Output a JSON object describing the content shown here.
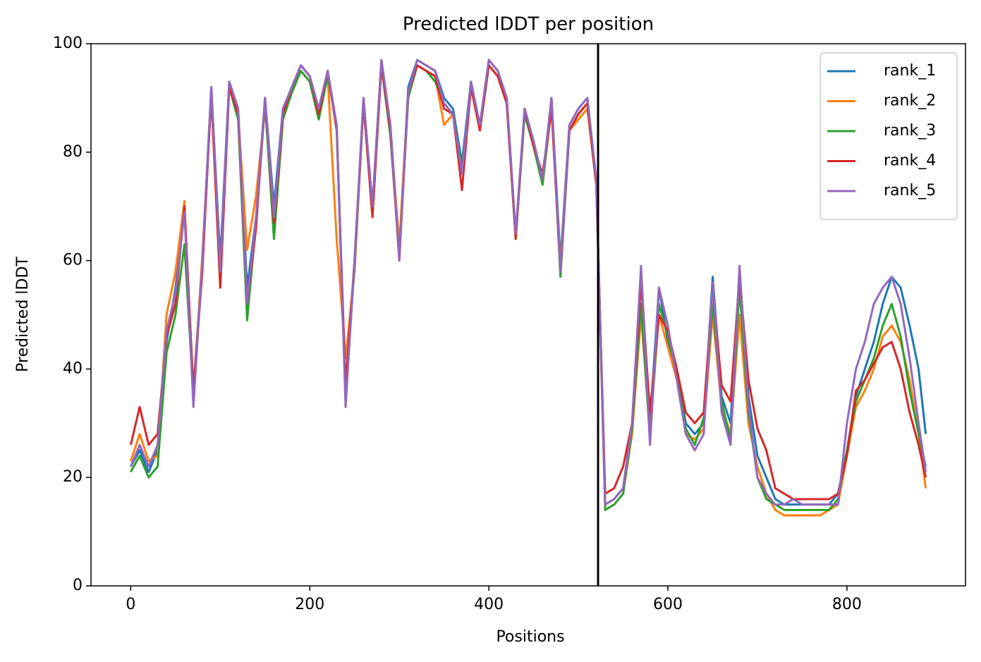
{
  "chart_data": {
    "type": "line",
    "title": "Predicted lDDT per position",
    "x_label": "Positions",
    "y_label": "Predicted lDDT",
    "x": [
      0,
      10,
      20,
      30,
      40,
      50,
      60,
      70,
      80,
      90,
      100,
      110,
      120,
      130,
      140,
      150,
      160,
      170,
      180,
      190,
      200,
      210,
      220,
      230,
      240,
      250,
      260,
      270,
      280,
      290,
      300,
      310,
      320,
      330,
      340,
      350,
      360,
      370,
      380,
      390,
      400,
      410,
      420,
      430,
      440,
      450,
      460,
      470,
      480,
      490,
      500,
      510,
      520,
      530,
      540,
      550,
      560,
      570,
      580,
      590,
      600,
      610,
      620,
      630,
      640,
      650,
      660,
      670,
      680,
      690,
      700,
      710,
      720,
      730,
      740,
      750,
      760,
      770,
      780,
      790,
      800,
      810,
      820,
      830,
      840,
      850,
      860,
      870,
      880,
      888
    ],
    "series": [
      {
        "name": "rank_1",
        "color": "#1f77b4",
        "values": [
          22,
          25,
          21,
          25,
          45,
          55,
          70,
          36,
          60,
          92,
          60,
          93,
          88,
          55,
          68,
          90,
          70,
          88,
          92,
          96,
          94,
          88,
          95,
          85,
          36,
          60,
          90,
          70,
          97,
          85,
          62,
          92,
          97,
          96,
          95,
          90,
          88,
          78,
          93,
          85,
          97,
          95,
          90,
          65,
          88,
          82,
          75,
          90,
          60,
          85,
          88,
          90,
          75,
          15,
          16,
          18,
          30,
          58,
          30,
          55,
          45,
          40,
          30,
          28,
          30,
          57,
          35,
          30,
          58,
          35,
          24,
          20,
          16,
          15,
          15,
          15,
          15,
          15,
          15,
          17,
          25,
          35,
          40,
          45,
          52,
          57,
          55,
          48,
          40,
          28
        ]
      },
      {
        "name": "rank_2",
        "color": "#ff7f0e",
        "values": [
          23,
          28,
          23,
          24,
          50,
          58,
          71,
          35,
          61,
          90,
          55,
          92,
          87,
          62,
          72,
          88,
          68,
          87,
          91,
          95,
          93,
          87,
          94,
          64,
          42,
          58,
          89,
          68,
          96,
          84,
          63,
          91,
          96,
          95,
          94,
          85,
          87,
          76,
          92,
          84,
          96,
          94,
          89,
          64,
          87,
          81,
          74,
          88,
          59,
          84,
          86,
          88,
          74,
          14,
          15,
          17,
          28,
          50,
          28,
          50,
          44,
          38,
          28,
          27,
          29,
          50,
          33,
          28,
          50,
          30,
          22,
          17,
          14,
          13,
          13,
          13,
          13,
          13,
          14,
          15,
          24,
          33,
          36,
          40,
          46,
          48,
          45,
          38,
          28,
          18
        ]
      },
      {
        "name": "rank_3",
        "color": "#2ca02c",
        "values": [
          21,
          24,
          20,
          22,
          43,
          50,
          63,
          35,
          59,
          91,
          58,
          92,
          86,
          49,
          67,
          89,
          64,
          86,
          91,
          95,
          93,
          86,
          94,
          85,
          35,
          59,
          89,
          69,
          96,
          83,
          61,
          90,
          96,
          95,
          93,
          89,
          87,
          77,
          92,
          85,
          96,
          94,
          89,
          64,
          87,
          81,
          74,
          89,
          57,
          84,
          87,
          89,
          74,
          14,
          15,
          17,
          29,
          52,
          27,
          52,
          46,
          39,
          29,
          26,
          31,
          52,
          34,
          27,
          55,
          32,
          20,
          16,
          15,
          14,
          14,
          14,
          14,
          14,
          14,
          16,
          25,
          34,
          38,
          42,
          48,
          52,
          46,
          36,
          28,
          22
        ]
      },
      {
        "name": "rank_4",
        "color": "#d62728",
        "values": [
          26,
          33,
          26,
          28,
          46,
          52,
          70,
          36,
          58,
          91,
          55,
          92,
          87,
          52,
          66,
          90,
          67,
          87,
          92,
          96,
          94,
          87,
          95,
          84,
          37,
          60,
          89,
          68,
          96,
          84,
          60,
          91,
          96,
          95,
          94,
          88,
          87,
          73,
          92,
          84,
          96,
          94,
          89,
          64,
          88,
          81,
          76,
          88,
          58,
          84,
          87,
          89,
          74,
          17,
          18,
          22,
          30,
          56,
          32,
          50,
          47,
          40,
          32,
          30,
          32,
          55,
          37,
          34,
          57,
          38,
          29,
          25,
          18,
          17,
          16,
          16,
          16,
          16,
          16,
          17,
          24,
          36,
          38,
          41,
          44,
          45,
          40,
          32,
          26,
          20
        ]
      },
      {
        "name": "rank_5",
        "color": "#9467bd",
        "values": [
          22,
          26,
          22,
          26,
          47,
          54,
          69,
          33,
          60,
          92,
          58,
          93,
          88,
          52,
          68,
          90,
          68,
          88,
          92,
          96,
          94,
          88,
          95,
          85,
          33,
          60,
          90,
          70,
          97,
          85,
          60,
          91,
          97,
          96,
          95,
          89,
          87,
          76,
          93,
          85,
          97,
          95,
          90,
          65,
          88,
          82,
          75,
          90,
          58,
          85,
          88,
          90,
          75,
          15,
          16,
          18,
          30,
          59,
          26,
          55,
          48,
          38,
          28,
          25,
          28,
          56,
          32,
          26,
          59,
          33,
          20,
          17,
          15,
          15,
          16,
          15,
          15,
          15,
          15,
          15,
          30,
          40,
          45,
          52,
          55,
          57,
          52,
          42,
          30,
          21
        ]
      }
    ],
    "vline": 522,
    "xlim": [
      -44.4,
      932.4
    ],
    "ylim": [
      0,
      100
    ],
    "xticks": [
      0,
      200,
      400,
      600,
      800
    ],
    "yticks": [
      0,
      20,
      40,
      60,
      80,
      100
    ],
    "grid": false,
    "legend": "upper right"
  }
}
